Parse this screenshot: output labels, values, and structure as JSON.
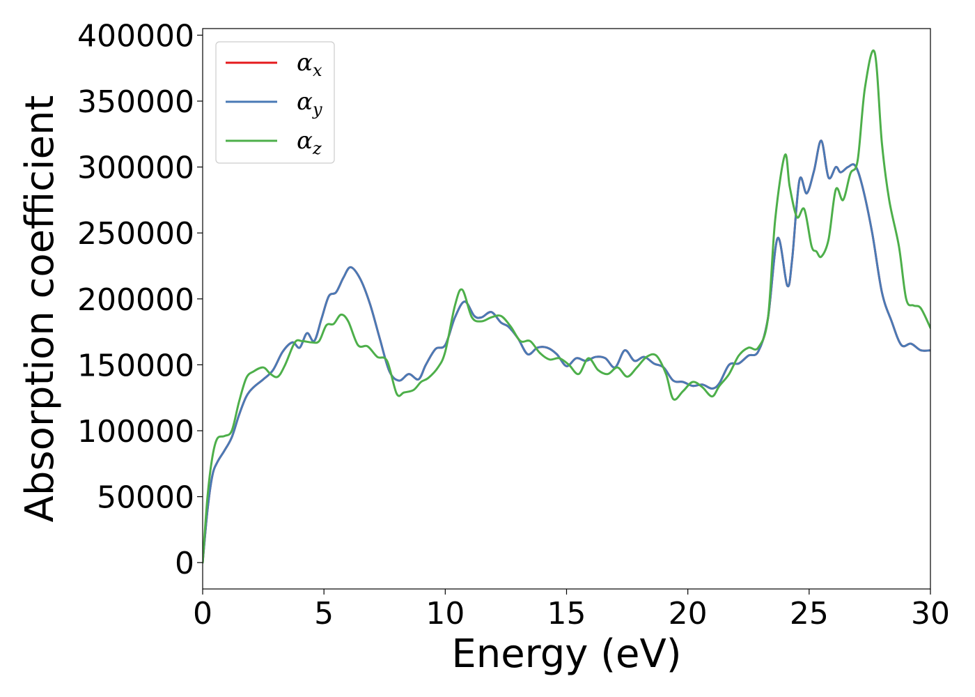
{
  "chart_data": {
    "type": "line",
    "xlabel": "Energy (eV)",
    "ylabel": "Absorption coefficient",
    "xlim": [
      0,
      30
    ],
    "ylim": [
      -20000,
      405000
    ],
    "xticks": [
      0,
      5,
      10,
      15,
      20,
      25,
      30
    ],
    "yticks": [
      0,
      50000,
      100000,
      150000,
      200000,
      250000,
      300000,
      350000,
      400000
    ],
    "grid": false,
    "legend_position": "upper-left",
    "series": [
      {
        "name": "α_x",
        "legend_base": "α",
        "legend_sub": "x",
        "color": "#e41a1c",
        "x": [
          0,
          0.2,
          0.4,
          0.6,
          0.9,
          1.2,
          1.5,
          1.8,
          2.1,
          2.5,
          2.9,
          3.3,
          3.7,
          4.0,
          4.3,
          4.6,
          4.9,
          5.2,
          5.5,
          5.8,
          6.1,
          6.5,
          6.9,
          7.3,
          7.7,
          8.1,
          8.5,
          8.9,
          9.2,
          9.6,
          10.0,
          10.4,
          10.8,
          11.2,
          11.5,
          11.9,
          12.3,
          12.6,
          13.0,
          13.4,
          13.8,
          14.2,
          14.6,
          15.0,
          15.4,
          15.8,
          16.2,
          16.6,
          17.0,
          17.4,
          17.8,
          18.2,
          18.6,
          19.0,
          19.4,
          19.8,
          20.2,
          20.6,
          21.0,
          21.3,
          21.7,
          22.1,
          22.5,
          22.9,
          23.3,
          23.7,
          24.1,
          24.3,
          24.6,
          24.9,
          25.2,
          25.5,
          25.8,
          26.1,
          26.3,
          26.6,
          26.9,
          27.2,
          27.6,
          28.0,
          28.4,
          28.8,
          29.2,
          29.6,
          30.0
        ],
        "y": [
          0,
          40000,
          66000,
          76000,
          85000,
          95000,
          112000,
          126000,
          133000,
          139000,
          146000,
          160000,
          167000,
          163000,
          174000,
          168000,
          185000,
          202000,
          205000,
          216000,
          224000,
          215000,
          196000,
          170000,
          145000,
          138000,
          143000,
          139000,
          150000,
          162000,
          165000,
          186000,
          198000,
          187000,
          186000,
          190000,
          182000,
          179000,
          170000,
          158000,
          163000,
          163000,
          158000,
          149000,
          155000,
          153000,
          156000,
          155000,
          148000,
          161000,
          153000,
          156000,
          151000,
          148000,
          138000,
          137000,
          134000,
          135000,
          132000,
          136000,
          150000,
          151000,
          157000,
          160000,
          185000,
          246000,
          210000,
          230000,
          290000,
          280000,
          297000,
          320000,
          292000,
          300000,
          296000,
          300000,
          301000,
          285000,
          250000,
          205000,
          183000,
          165000,
          166000,
          161000,
          161000
        ]
      },
      {
        "name": "α_y",
        "legend_base": "α",
        "legend_sub": "y",
        "color": "#4a7ab5",
        "x": [
          0,
          0.2,
          0.4,
          0.6,
          0.9,
          1.2,
          1.5,
          1.8,
          2.1,
          2.5,
          2.9,
          3.3,
          3.7,
          4.0,
          4.3,
          4.6,
          4.9,
          5.2,
          5.5,
          5.8,
          6.1,
          6.5,
          6.9,
          7.3,
          7.7,
          8.1,
          8.5,
          8.9,
          9.2,
          9.6,
          10.0,
          10.4,
          10.8,
          11.2,
          11.5,
          11.9,
          12.3,
          12.6,
          13.0,
          13.4,
          13.8,
          14.2,
          14.6,
          15.0,
          15.4,
          15.8,
          16.2,
          16.6,
          17.0,
          17.4,
          17.8,
          18.2,
          18.6,
          19.0,
          19.4,
          19.8,
          20.2,
          20.6,
          21.0,
          21.3,
          21.7,
          22.1,
          22.5,
          22.9,
          23.3,
          23.7,
          24.1,
          24.3,
          24.6,
          24.9,
          25.2,
          25.5,
          25.8,
          26.1,
          26.3,
          26.6,
          26.9,
          27.2,
          27.6,
          28.0,
          28.4,
          28.8,
          29.2,
          29.6,
          30.0
        ],
        "y": [
          0,
          40000,
          66000,
          76000,
          85000,
          95000,
          112000,
          126000,
          133000,
          139000,
          146000,
          160000,
          167000,
          163000,
          174000,
          168000,
          185000,
          202000,
          205000,
          216000,
          224000,
          215000,
          196000,
          170000,
          145000,
          138000,
          143000,
          139000,
          150000,
          162000,
          165000,
          186000,
          198000,
          187000,
          186000,
          190000,
          182000,
          179000,
          170000,
          158000,
          163000,
          163000,
          158000,
          149000,
          155000,
          153000,
          156000,
          155000,
          148000,
          161000,
          153000,
          156000,
          151000,
          148000,
          138000,
          137000,
          134000,
          135000,
          132000,
          136000,
          150000,
          151000,
          157000,
          160000,
          185000,
          246000,
          210000,
          230000,
          290000,
          280000,
          297000,
          320000,
          292000,
          300000,
          296000,
          300000,
          301000,
          285000,
          250000,
          205000,
          183000,
          165000,
          166000,
          161000,
          161000
        ]
      },
      {
        "name": "α_z",
        "legend_base": "α",
        "legend_sub": "z",
        "color": "#4daf4a",
        "x": [
          0,
          0.2,
          0.4,
          0.6,
          0.9,
          1.2,
          1.5,
          1.8,
          2.1,
          2.5,
          2.8,
          3.1,
          3.4,
          3.8,
          4.1,
          4.5,
          4.8,
          5.1,
          5.4,
          5.7,
          6.0,
          6.4,
          6.8,
          7.2,
          7.6,
          8.0,
          8.3,
          8.7,
          9.0,
          9.3,
          9.7,
          10.0,
          10.4,
          10.7,
          11.1,
          11.5,
          11.9,
          12.3,
          12.7,
          13.1,
          13.5,
          13.9,
          14.3,
          14.7,
          15.1,
          15.5,
          15.9,
          16.3,
          16.7,
          17.1,
          17.5,
          17.9,
          18.3,
          18.7,
          19.1,
          19.4,
          19.8,
          20.2,
          20.6,
          21.0,
          21.3,
          21.7,
          22.1,
          22.5,
          22.9,
          23.3,
          23.6,
          24.0,
          24.2,
          24.5,
          24.8,
          25.1,
          25.3,
          25.5,
          25.8,
          26.1,
          26.4,
          26.7,
          27.0,
          27.3,
          27.7,
          28.0,
          28.3,
          28.7,
          29.0,
          29.3,
          29.6,
          30.0
        ],
        "y": [
          0,
          50000,
          80000,
          94000,
          96000,
          100000,
          122000,
          140000,
          145000,
          148000,
          143000,
          141000,
          150000,
          167000,
          168000,
          167000,
          168000,
          180000,
          181000,
          188000,
          183000,
          165000,
          164000,
          156000,
          153000,
          128000,
          129000,
          131000,
          137000,
          140000,
          148000,
          160000,
          195000,
          207000,
          186000,
          183000,
          186000,
          187000,
          179000,
          168000,
          168000,
          159000,
          154000,
          155000,
          150000,
          143000,
          155000,
          146000,
          143000,
          148000,
          141000,
          148000,
          156000,
          157000,
          143000,
          124000,
          130000,
          137000,
          133000,
          126000,
          134000,
          143000,
          157000,
          163000,
          163000,
          185000,
          260000,
          309000,
          285000,
          262000,
          268000,
          240000,
          236000,
          232000,
          245000,
          283000,
          275000,
          295000,
          305000,
          360000,
          387000,
          318000,
          275000,
          240000,
          200000,
          195000,
          193000,
          178000
        ]
      }
    ]
  }
}
